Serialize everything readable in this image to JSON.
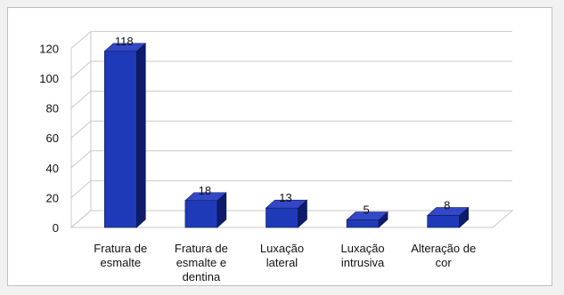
{
  "chart_data": {
    "type": "bar",
    "style": "3d",
    "categories": [
      [
        "Fratura de",
        "esmalte"
      ],
      [
        "Fratura de",
        "esmalte e",
        "dentina"
      ],
      [
        "Luxação",
        "lateral"
      ],
      [
        "Luxação",
        "intrusiva"
      ],
      [
        "Alteração de",
        "cor"
      ]
    ],
    "values": [
      118,
      18,
      13,
      5,
      8
    ],
    "data_labels": [
      "118",
      "18",
      "13",
      "5",
      "8"
    ],
    "ylim": [
      0,
      130
    ],
    "yticks": [
      0,
      20,
      40,
      60,
      80,
      100,
      120
    ],
    "ytick_labels": [
      "0",
      "20",
      "40",
      "60",
      "80",
      "100",
      "120"
    ],
    "title": "",
    "xlabel": "",
    "ylabel": "",
    "grid": true,
    "legend": "none",
    "colors": {
      "bar_front": "#1f3ab8",
      "bar_side": "#0e1b6a",
      "bar_top": "#3348c8",
      "grid": "#c8c8c8",
      "axis": "#8f8f8f"
    }
  }
}
